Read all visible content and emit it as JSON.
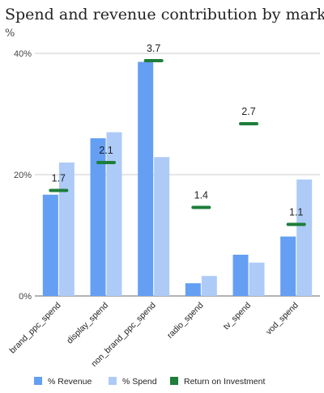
{
  "chart_data": {
    "type": "bar",
    "title": "Spend and revenue contribution by marketing channel",
    "ylabel": "%",
    "ylim": [
      0,
      40
    ],
    "yticks": [
      {
        "value": 0,
        "label": "0%"
      },
      {
        "value": 20,
        "label": "20%"
      },
      {
        "value": 40,
        "label": "40%"
      }
    ],
    "grid": true,
    "legend_position": "bottom",
    "categories": [
      "brand_ppc_spend",
      "display_spend",
      "non_brand_ppc_spend",
      "radio_spend",
      "tv_spend",
      "vod_spend"
    ],
    "series": [
      {
        "name": "% Revenue",
        "kind": "bar",
        "color": "#649ff3",
        "values": [
          16.7,
          26.0,
          38.6,
          2.1,
          6.8,
          9.8
        ]
      },
      {
        "name": "% Spend",
        "kind": "bar",
        "color": "#aecbf7",
        "values": [
          22.0,
          27.0,
          22.9,
          3.3,
          5.5,
          19.2
        ]
      },
      {
        "name": "Return on Investment",
        "kind": "marker",
        "color": "#1e7e3a",
        "values": [
          1.7,
          2.1,
          3.7,
          1.4,
          2.7,
          1.1
        ],
        "labels": [
          "1.7",
          "2.1",
          "3.7",
          "1.4",
          "2.7",
          "1.1"
        ],
        "plotted_at_percent": [
          17.4,
          22.0,
          38.8,
          14.6,
          28.4,
          11.8
        ]
      }
    ]
  }
}
